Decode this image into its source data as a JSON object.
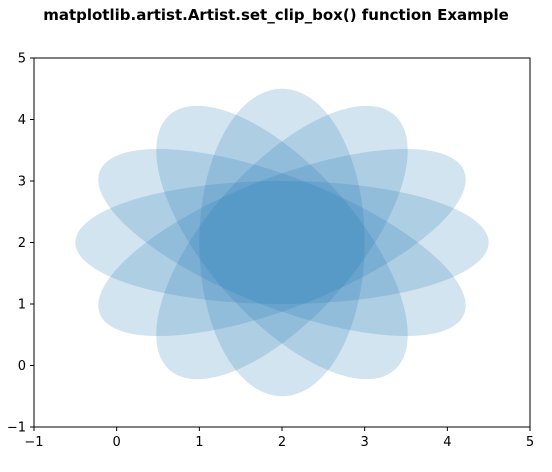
{
  "chart_data": {
    "type": "scatter",
    "title": "matplotlib.artist.Artist.set_clip_box() function Example",
    "xlabel": "",
    "ylabel": "",
    "xlim": [
      -1,
      5
    ],
    "ylim": [
      -1,
      5
    ],
    "xticks": [
      -1,
      0,
      1,
      2,
      3,
      4,
      5
    ],
    "yticks": [
      -1,
      0,
      1,
      2,
      3,
      4,
      5
    ],
    "xtick_labels": [
      "−1",
      "0",
      "1",
      "2",
      "3",
      "4",
      "5"
    ],
    "ytick_labels": [
      "−1",
      "0",
      "1",
      "2",
      "3",
      "4",
      "5"
    ],
    "grid": false,
    "ellipse_color": "#1f77b4",
    "ellipse_alpha": 0.2,
    "ellipses": [
      {
        "center": [
          2,
          2
        ],
        "width": 5,
        "height": 2,
        "angle": 0
      },
      {
        "center": [
          2,
          2
        ],
        "width": 5,
        "height": 2,
        "angle": 30
      },
      {
        "center": [
          2,
          2
        ],
        "width": 5,
        "height": 2,
        "angle": 60
      },
      {
        "center": [
          2,
          2
        ],
        "width": 5,
        "height": 2,
        "angle": 90
      },
      {
        "center": [
          2,
          2
        ],
        "width": 5,
        "height": 2,
        "angle": 120
      },
      {
        "center": [
          2,
          2
        ],
        "width": 5,
        "height": 2,
        "angle": 150
      }
    ]
  }
}
